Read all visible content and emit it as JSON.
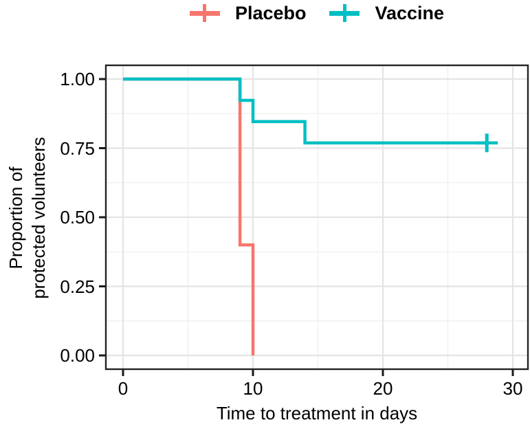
{
  "figure": {
    "background": "#FFFFFF"
  },
  "legend": {
    "items": [
      {
        "label": "Placebo",
        "color": "#F8766D",
        "marker": "plus-icon"
      },
      {
        "label": "Vaccine",
        "color": "#00BFC4",
        "marker": "plus-icon"
      }
    ]
  },
  "chart_data": {
    "type": "line",
    "subtype": "kaplan-meier-step",
    "title": "",
    "xlabel": "Time to treatment in days",
    "ylabel": "Proportion of protected volunteers",
    "ylabel_lines": {
      "line1": "Proportion of",
      "line2": "protected volunteers"
    },
    "xlim": [
      0,
      30
    ],
    "ylim": [
      0,
      1
    ],
    "x_ticks": [
      0,
      10,
      20,
      30
    ],
    "x_tick_labels": [
      "0",
      "10",
      "20",
      "30"
    ],
    "y_ticks": [
      1.0,
      0.75,
      0.5,
      0.25,
      0.0
    ],
    "y_tick_labels": [
      "1.00",
      "0.75",
      "0.50",
      "0.25",
      "0.00"
    ],
    "grid": {
      "major": true,
      "minor": true,
      "major_color": "#E4E4E4",
      "minor_color": "#F1F1F1"
    },
    "panel_border_color": "#232323",
    "tick_color": "#1A1A1A",
    "legend_position": "top",
    "series": [
      {
        "name": "Placebo",
        "color": "#F8766D",
        "steps": [
          {
            "t": 0,
            "p": 1.0
          },
          {
            "t": 9,
            "p": 0.4
          },
          {
            "t": 10,
            "p": 0.0
          }
        ],
        "end_time": 10,
        "censored": []
      },
      {
        "name": "Vaccine",
        "color": "#00BFC4",
        "steps": [
          {
            "t": 0,
            "p": 1.0
          },
          {
            "t": 9,
            "p": 0.923
          },
          {
            "t": 10,
            "p": 0.846
          },
          {
            "t": 14,
            "p": 0.769
          }
        ],
        "end_time": 28,
        "censored": [
          {
            "t": 28,
            "p": 0.769
          }
        ]
      }
    ]
  }
}
